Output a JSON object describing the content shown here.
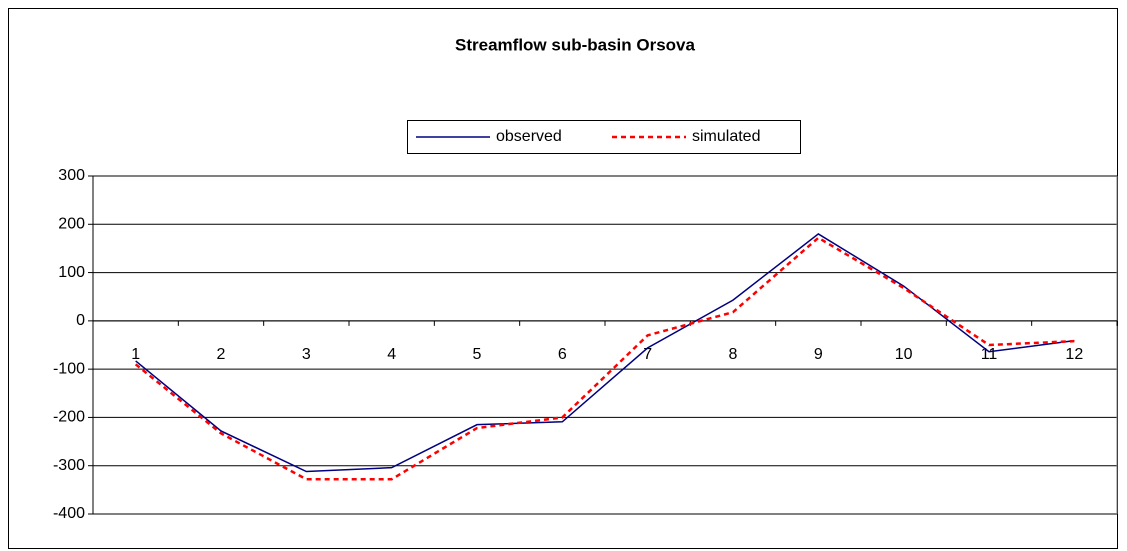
{
  "chart_data": {
    "type": "line",
    "title": "Streamflow sub-basin Orsova",
    "categories": [
      "1",
      "2",
      "3",
      "4",
      "5",
      "6",
      "7",
      "8",
      "9",
      "10",
      "11",
      "12"
    ],
    "series": [
      {
        "name": "observed",
        "color": "#000080",
        "dash": false,
        "values": [
          -83,
          -228,
          -312,
          -304,
          -215,
          -209,
          -56,
          43,
          180,
          72,
          -64,
          -41
        ]
      },
      {
        "name": "simulated",
        "color": "#ff0000",
        "dash": true,
        "values": [
          -90,
          -233,
          -328,
          -328,
          -222,
          -200,
          -30,
          18,
          172,
          68,
          -50,
          -42
        ]
      }
    ],
    "ylim": [
      -400,
      300
    ],
    "yticks": [
      -400,
      -300,
      -200,
      -100,
      0,
      100,
      200,
      300
    ],
    "grid": true,
    "legend": "top"
  }
}
